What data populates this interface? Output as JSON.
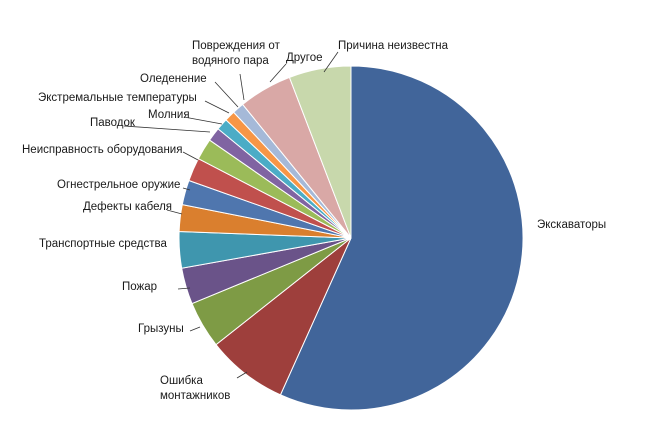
{
  "chart_data": {
    "type": "pie",
    "title": "",
    "start_angle_deg": 0,
    "direction": "clockwise",
    "slices": [
      {
        "label": "Экскаваторы",
        "value": 56.5,
        "color": "#41659A"
      },
      {
        "label": "Ошибка монтажников",
        "value": 7.6,
        "color": "#9E3F3C"
      },
      {
        "label": "Грызуны",
        "value": 4.4,
        "color": "#7E9B45"
      },
      {
        "label": "Пожар",
        "value": 3.4,
        "color": "#6A5389"
      },
      {
        "label": "Транспортные средства",
        "value": 3.4,
        "color": "#3F96AE"
      },
      {
        "label": "Дефекты кабеля",
        "value": 2.5,
        "color": "#DA7F2E"
      },
      {
        "label": "Огнестрельное оружие",
        "value": 2.3,
        "color": "#4F76AE"
      },
      {
        "label": "Неисправность оборудования",
        "value": 2.2,
        "color": "#C0504D"
      },
      {
        "label": "Паводок",
        "value": 2.0,
        "color": "#9BBB59"
      },
      {
        "label": "Молния",
        "value": 1.3,
        "color": "#8064A2"
      },
      {
        "label": "Экстремальные температуры",
        "value": 1.1,
        "color": "#4BACC6"
      },
      {
        "label": "Оледенение",
        "value": 1.0,
        "color": "#F79646"
      },
      {
        "label": "Повреждения от водяного пара",
        "value": 1.1,
        "color": "#A5B9D8"
      },
      {
        "label": "Другое",
        "value": 5.0,
        "color": "#D9A8A6"
      },
      {
        "label": "Причина неизвестна",
        "value": 5.8,
        "color": "#C8D8AC"
      }
    ]
  }
}
